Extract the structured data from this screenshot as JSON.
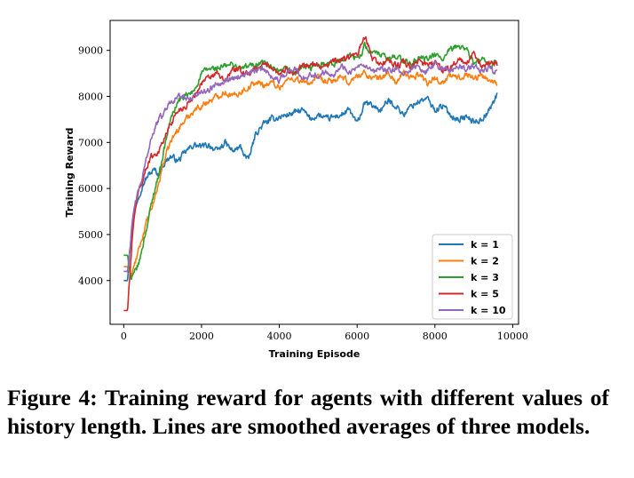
{
  "chart_data": {
    "type": "line",
    "title": "",
    "xlabel": "Training Episode",
    "ylabel": "Training Reward",
    "xlim": [
      -350,
      10150
    ],
    "ylim": [
      3050,
      9650
    ],
    "xticks": [
      0,
      2000,
      4000,
      6000,
      8000,
      10000
    ],
    "xtick_labels": [
      "0",
      "2000",
      "4000",
      "6000",
      "8000",
      "10000"
    ],
    "yticks": [
      4000,
      5000,
      6000,
      7000,
      8000,
      9000
    ],
    "ytick_labels": [
      "4000",
      "5000",
      "6000",
      "7000",
      "8000",
      "9000"
    ],
    "grid": false,
    "legend_position": "bottom-right",
    "series": [
      {
        "name": "k = 1",
        "color": "#1f77b4",
        "x": [
          0,
          100,
          200,
          300,
          400,
          500,
          600,
          700,
          800,
          900,
          1000,
          1200,
          1400,
          1600,
          1800,
          2000,
          2200,
          2400,
          2600,
          2800,
          3000,
          3200,
          3400,
          3600,
          3800,
          4000,
          4200,
          4400,
          4600,
          4800,
          5000,
          5200,
          5400,
          5600,
          5800,
          6000,
          6200,
          6400,
          6600,
          6800,
          7000,
          7200,
          7400,
          7600,
          7800,
          8000,
          8200,
          8400,
          8600,
          8800,
          9000,
          9200,
          9400,
          9600
        ],
        "values": [
          4000,
          4000,
          5100,
          5600,
          5900,
          6100,
          6250,
          6350,
          6400,
          6300,
          6500,
          6700,
          6600,
          6800,
          6950,
          6900,
          6950,
          6800,
          7000,
          6800,
          6900,
          6600,
          7200,
          7400,
          7500,
          7550,
          7600,
          7650,
          7700,
          7500,
          7600,
          7500,
          7550,
          7600,
          7700,
          7400,
          7850,
          7800,
          7700,
          7900,
          7800,
          7600,
          7800,
          7900,
          7950,
          7700,
          7800,
          7600,
          7500,
          7550,
          7450,
          7500,
          7700,
          8050
        ]
      },
      {
        "name": "k = 2",
        "color": "#ff7f0e",
        "x": [
          0,
          100,
          200,
          300,
          400,
          500,
          600,
          700,
          800,
          900,
          1000,
          1200,
          1400,
          1600,
          1800,
          2000,
          2200,
          2400,
          2600,
          2800,
          3000,
          3200,
          3400,
          3600,
          3800,
          4000,
          4200,
          4400,
          4600,
          4800,
          5000,
          5200,
          5400,
          5600,
          5800,
          6000,
          6200,
          6400,
          6600,
          6800,
          7000,
          7200,
          7400,
          7600,
          7800,
          8000,
          8200,
          8400,
          8600,
          8800,
          9000,
          9200,
          9400,
          9600
        ],
        "values": [
          4300,
          4300,
          4100,
          4400,
          4700,
          5000,
          5300,
          5500,
          5800,
          6100,
          6500,
          7000,
          7300,
          7500,
          7700,
          7800,
          7900,
          8000,
          8100,
          8000,
          8100,
          8200,
          8300,
          8250,
          8300,
          8200,
          8350,
          8400,
          8300,
          8300,
          8400,
          8300,
          8350,
          8400,
          8300,
          8450,
          8500,
          8400,
          8400,
          8500,
          8300,
          8500,
          8400,
          8500,
          8300,
          8400,
          8300,
          8450,
          8400,
          8500,
          8400,
          8450,
          8350,
          8300
        ]
      },
      {
        "name": "k = 3",
        "color": "#2ca02c",
        "x": [
          0,
          100,
          200,
          300,
          400,
          500,
          600,
          700,
          800,
          900,
          1000,
          1200,
          1400,
          1600,
          1800,
          2000,
          2200,
          2400,
          2600,
          2800,
          3000,
          3200,
          3400,
          3600,
          3800,
          4000,
          4200,
          4400,
          4600,
          4800,
          5000,
          5200,
          5400,
          5600,
          5800,
          6000,
          6200,
          6400,
          6600,
          6800,
          7000,
          7200,
          7400,
          7600,
          7800,
          8000,
          8200,
          8400,
          8600,
          8800,
          9000,
          9200,
          9400,
          9600
        ],
        "values": [
          4550,
          4550,
          4000,
          4200,
          4400,
          4800,
          5200,
          5600,
          6000,
          6300,
          6700,
          7500,
          7900,
          8000,
          8100,
          8500,
          8600,
          8600,
          8650,
          8700,
          8600,
          8650,
          8700,
          8750,
          8600,
          8500,
          8600,
          8500,
          8650,
          8600,
          8700,
          8750,
          8700,
          8800,
          8900,
          8800,
          9100,
          8950,
          8900,
          8800,
          8900,
          8750,
          8700,
          8850,
          8800,
          8900,
          8800,
          9000,
          9100,
          9050,
          8700,
          8800,
          8650,
          8750
        ]
      },
      {
        "name": "k = 5",
        "color": "#d62728",
        "x": [
          0,
          100,
          200,
          300,
          400,
          500,
          600,
          700,
          800,
          900,
          1000,
          1200,
          1400,
          1600,
          1800,
          2000,
          2200,
          2400,
          2600,
          2800,
          3000,
          3200,
          3400,
          3600,
          3800,
          4000,
          4200,
          4400,
          4600,
          4800,
          5000,
          5200,
          5400,
          5600,
          5800,
          6000,
          6200,
          6400,
          6600,
          6800,
          7000,
          7200,
          7400,
          7600,
          7800,
          8000,
          8200,
          8400,
          8600,
          8800,
          9000,
          9200,
          9400,
          9600
        ],
        "values": [
          3350,
          3350,
          4700,
          5600,
          6000,
          6200,
          6500,
          6700,
          6750,
          6800,
          7000,
          7400,
          7700,
          7800,
          8000,
          8300,
          8400,
          8500,
          8300,
          8600,
          8550,
          8500,
          8600,
          8700,
          8650,
          8500,
          8600,
          8500,
          8650,
          8700,
          8650,
          8700,
          8750,
          8800,
          8850,
          8900,
          9300,
          8800,
          8700,
          8800,
          8650,
          8750,
          8600,
          8800,
          8700,
          8750,
          8550,
          8650,
          8800,
          8700,
          8900,
          8650,
          8750,
          8700
        ]
      },
      {
        "name": "k = 10",
        "color": "#9467bd",
        "x": [
          0,
          100,
          200,
          300,
          400,
          500,
          600,
          700,
          800,
          900,
          1000,
          1200,
          1400,
          1600,
          1800,
          2000,
          2200,
          2400,
          2600,
          2800,
          3000,
          3200,
          3400,
          3600,
          3800,
          4000,
          4200,
          4400,
          4600,
          4800,
          5000,
          5200,
          5400,
          5600,
          5800,
          6000,
          6200,
          6400,
          6600,
          6800,
          7000,
          7200,
          7400,
          7600,
          7800,
          8000,
          8200,
          8400,
          8600,
          8800,
          9000,
          9200,
          9400,
          9600
        ],
        "values": [
          4200,
          4200,
          5100,
          5700,
          6000,
          6300,
          6700,
          7100,
          7300,
          7500,
          7600,
          7900,
          8000,
          7950,
          8000,
          8100,
          8150,
          8300,
          8350,
          8400,
          8450,
          8500,
          8550,
          8600,
          8450,
          8350,
          8550,
          8600,
          8400,
          8500,
          8450,
          8550,
          8500,
          8650,
          8550,
          8600,
          8650,
          8500,
          8600,
          8550,
          8600,
          8450,
          8650,
          8600,
          8550,
          8700,
          8600,
          8550,
          8650,
          8600,
          8650,
          8550,
          8600,
          8550
        ]
      }
    ]
  },
  "caption": "Figure 4: Training reward for agents with different values of history length.  Lines are smoothed averages of three models."
}
